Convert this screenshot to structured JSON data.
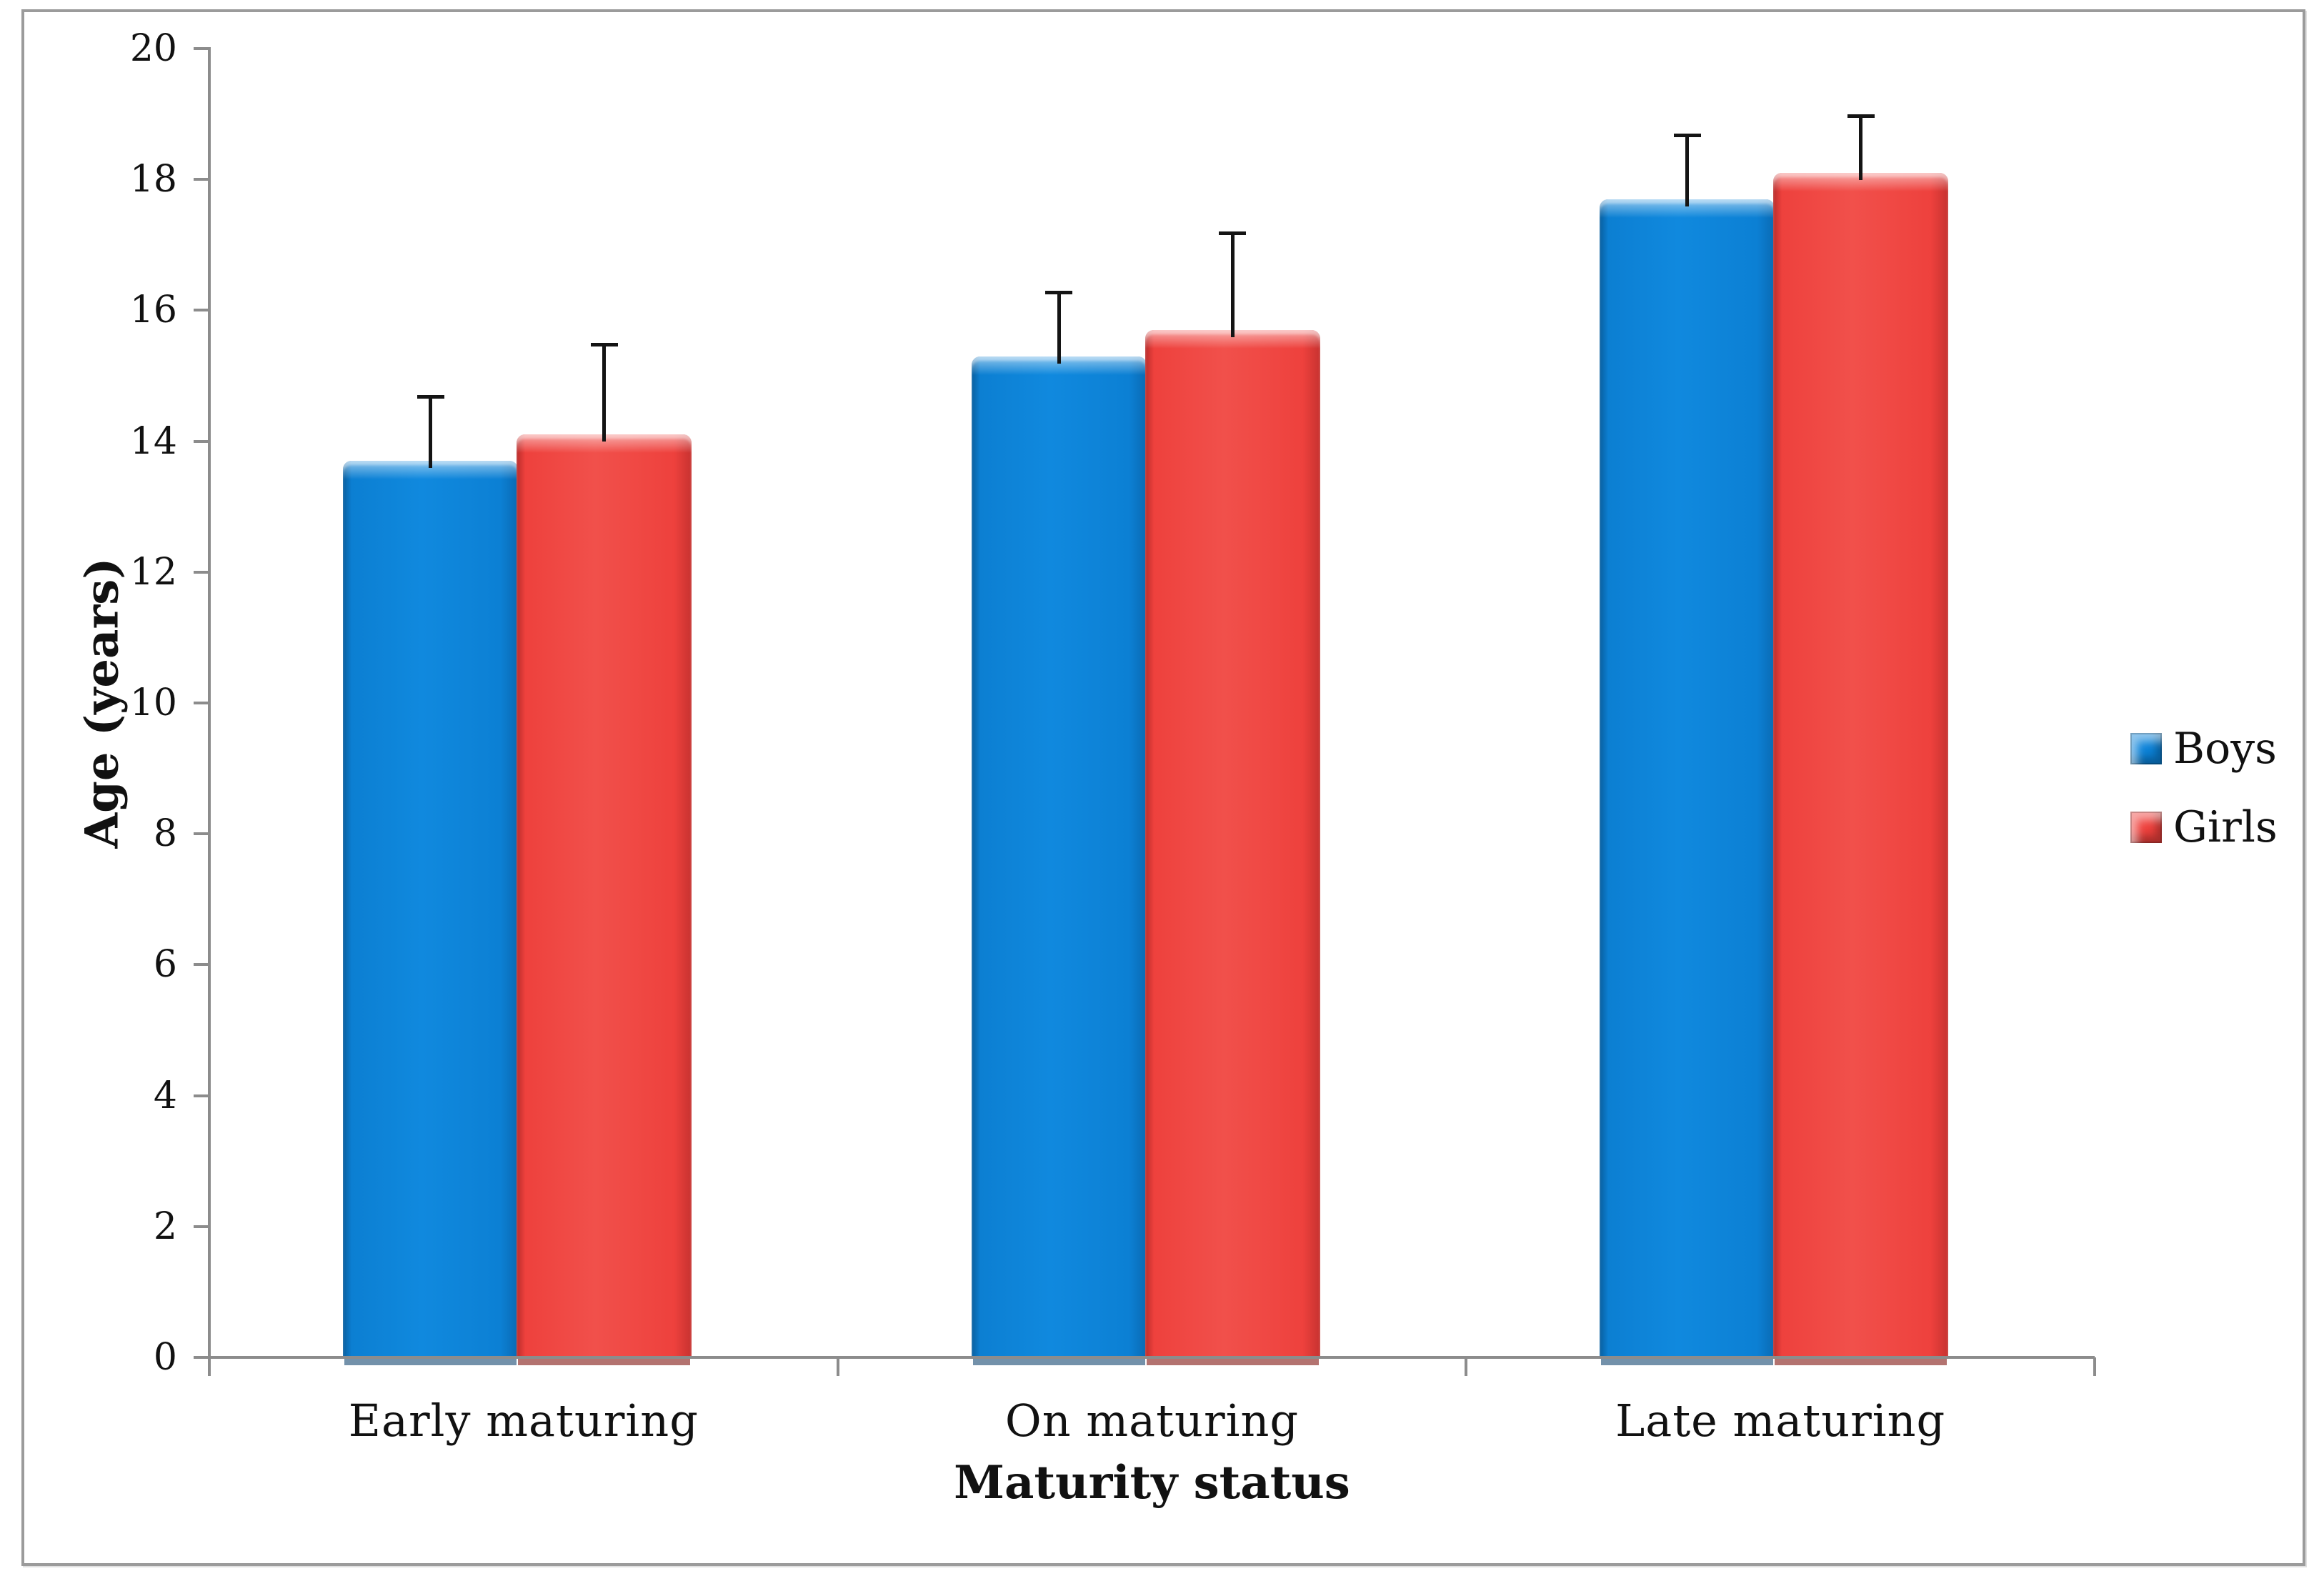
{
  "figure": {
    "kind": "grouped bar chart with error bars",
    "background": "#ffffff",
    "frame_border_color": "#9b9b9b",
    "axis_color": "#8c8c8c",
    "text_color": "#111111"
  },
  "chart_data": {
    "type": "bar",
    "title": "",
    "categories": [
      "Early maturing",
      "On maturing",
      "Late maturing"
    ],
    "series": [
      {
        "name": "Boys",
        "color": "#0b82d8",
        "values": [
          13.7,
          15.3,
          17.7
        ],
        "error_plus": [
          1.0,
          1.0,
          1.0
        ]
      },
      {
        "name": "Girls",
        "color": "#ee403c",
        "values": [
          14.1,
          15.7,
          18.1
        ],
        "error_plus": [
          1.4,
          1.5,
          0.9
        ]
      }
    ],
    "xlabel": "Maturity status",
    "ylabel": "Age (years)",
    "ylim": [
      0,
      20
    ],
    "yticks": [
      0,
      2,
      4,
      6,
      8,
      10,
      12,
      14,
      16,
      18,
      20
    ],
    "grid": false,
    "legend_position": "right",
    "error_bars": "upper only, black caps"
  }
}
